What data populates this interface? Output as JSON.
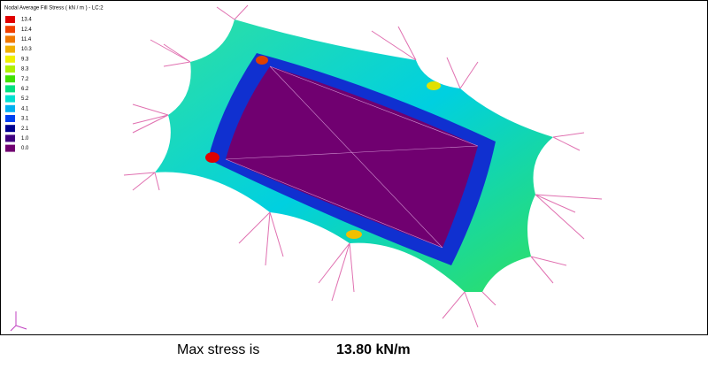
{
  "legend": {
    "title": "Nodal Average Fill Stress ( kN / m ) - LC:2",
    "items": [
      {
        "label": "13.4",
        "color": "#e00000"
      },
      {
        "label": "12.4",
        "color": "#f04000"
      },
      {
        "label": "11.4",
        "color": "#f07800"
      },
      {
        "label": "10.3",
        "color": "#f0b000"
      },
      {
        "label": "9.3",
        "color": "#f0f000"
      },
      {
        "label": "8.3",
        "color": "#b0f000"
      },
      {
        "label": "7.2",
        "color": "#40e000"
      },
      {
        "label": "6.2",
        "color": "#00e080"
      },
      {
        "label": "5.2",
        "color": "#00e0d0"
      },
      {
        "label": "4.1",
        "color": "#00b0f0"
      },
      {
        "label": "3.1",
        "color": "#0040f0"
      },
      {
        "label": "2.1",
        "color": "#000090"
      },
      {
        "label": "1.0",
        "color": "#400080"
      },
      {
        "label": "0.0",
        "color": "#700070"
      }
    ]
  },
  "caption": {
    "label": "Max stress is",
    "value": "13.80 kN/m"
  }
}
